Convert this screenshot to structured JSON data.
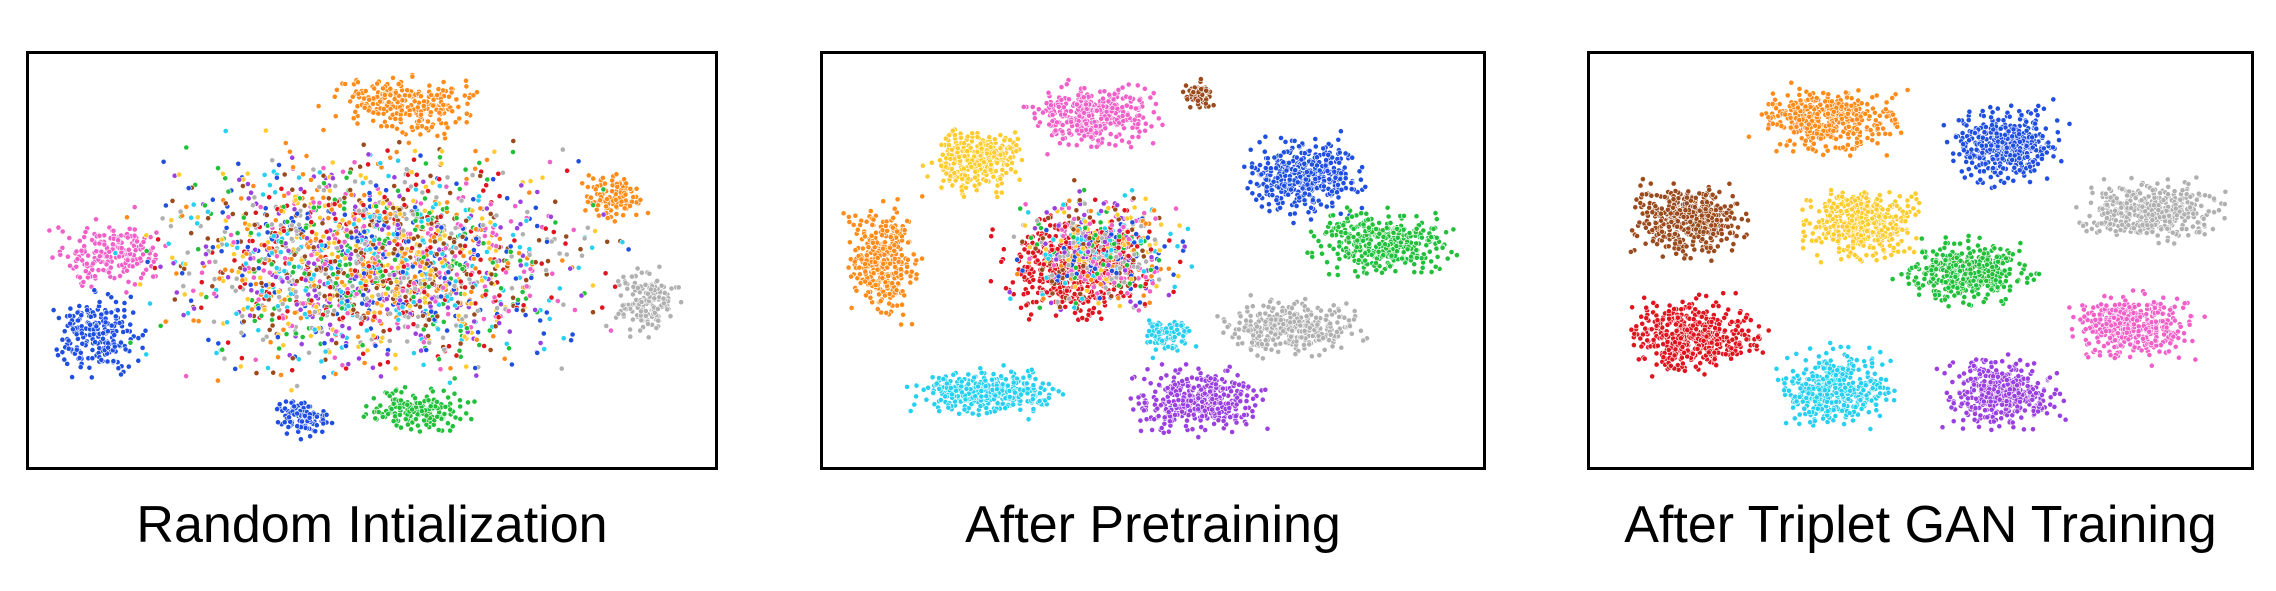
{
  "colors": {
    "orange": "#ff8c1a",
    "blue": "#1f4fe0",
    "pink": "#f060c8",
    "green": "#22c03a",
    "gray": "#b0b0b0",
    "purple": "#9a3fe0",
    "cyan": "#25d0f0",
    "red": "#e0141e",
    "yellow": "#ffcc30",
    "brown": "#9a4a1c"
  },
  "chart_data": [
    {
      "type": "scatter",
      "title": "Random Intialization",
      "xlabel": "",
      "ylabel": "",
      "grid": false,
      "clusters": []
    },
    {
      "type": "scatter",
      "title": "After Pretraining",
      "xlabel": "",
      "ylabel": "",
      "grid": false,
      "clusters": []
    },
    {
      "type": "scatter",
      "title": "After Triplet GAN Training",
      "xlabel": "",
      "ylabel": "",
      "grid": false,
      "clusters": []
    }
  ]
}
